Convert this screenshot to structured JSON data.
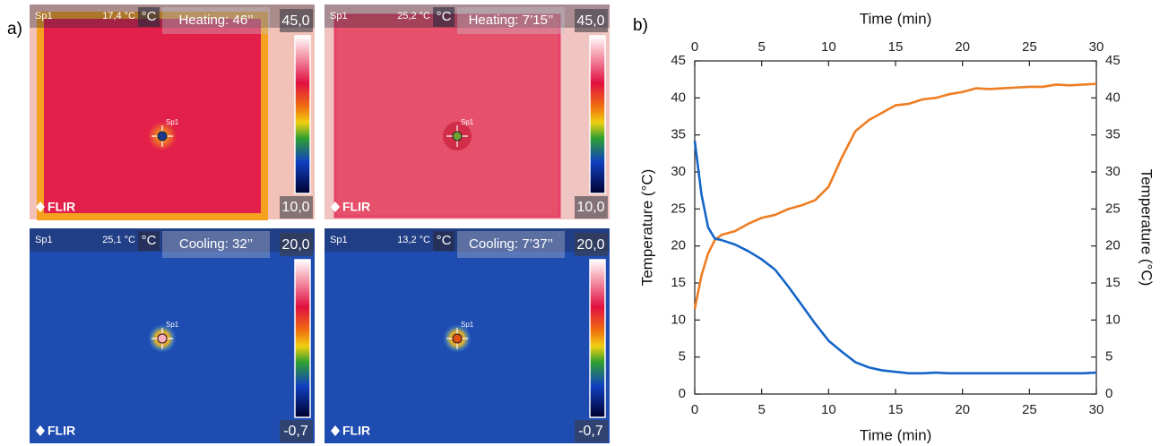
{
  "panel_a": {
    "label": "a)",
    "images": [
      {
        "spot": "Sp1",
        "temp": "17,4 °C",
        "unit": "°C",
        "mode": "Heating: 46’’",
        "scale_max": "45,0",
        "scale_min": "10,0",
        "spot_label": "Sp1",
        "brand": "FLIR"
      },
      {
        "spot": "Sp1",
        "temp": "25,2 °C",
        "unit": "°C",
        "mode": "Heating: 7’15’’",
        "scale_max": "45,0",
        "scale_min": "10,0",
        "spot_label": "Sp1",
        "brand": "FLIR"
      },
      {
        "spot": "Sp1",
        "temp": "25,1 °C",
        "unit": "°C",
        "mode": "Cooling: 32’’",
        "scale_max": "20,0",
        "scale_min": "-0,7",
        "spot_label": "Sp1",
        "brand": "FLIR"
      },
      {
        "spot": "Sp1",
        "temp": "13,2 °C",
        "unit": "°C",
        "mode": "Cooling: 7’37’’",
        "scale_max": "20,0",
        "scale_min": "-0,7",
        "spot_label": "Sp1",
        "brand": "FLIR"
      }
    ]
  },
  "chart_data": {
    "type": "line",
    "label": "b)",
    "xlabel": "Time (min)",
    "x2label": "Time (min)",
    "ylabel": "Temperature (°C)",
    "y2label": "Temperature (°C)",
    "x": [
      0,
      0.5,
      1,
      1.5,
      2,
      3,
      4,
      5,
      6,
      7,
      8,
      9,
      10,
      11,
      12,
      13,
      14,
      15,
      16,
      17,
      18,
      19,
      20,
      21,
      22,
      23,
      24,
      25,
      26,
      27,
      28,
      29,
      30
    ],
    "series": [
      {
        "color": "#ee7d22",
        "values": [
          11.5,
          16,
          19,
          20.8,
          21.5,
          22,
          23,
          23.8,
          24.2,
          25,
          25.5,
          26.2,
          28,
          32,
          35.5,
          37,
          38,
          39,
          39.2,
          39.8,
          40,
          40.5,
          40.8,
          41.3,
          41.2,
          41.3,
          41.4,
          41.5,
          41.5,
          41.8,
          41.7,
          41.8,
          41.9
        ]
      },
      {
        "color": "#1565c8",
        "values": [
          34.2,
          27,
          22.5,
          21,
          20.8,
          20.2,
          19.3,
          18.2,
          16.8,
          14.5,
          12,
          9.5,
          7.2,
          5.7,
          4.3,
          3.6,
          3.2,
          3.0,
          2.8,
          2.8,
          2.9,
          2.8,
          2.8,
          2.8,
          2.8,
          2.8,
          2.8,
          2.8,
          2.8,
          2.8,
          2.8,
          2.8,
          2.9
        ]
      }
    ],
    "xlim": [
      0,
      30
    ],
    "xticks": [
      0,
      5,
      10,
      15,
      20,
      25,
      30
    ],
    "x2lim": [
      0,
      30
    ],
    "x2ticks": [
      0,
      5,
      10,
      15,
      20,
      25,
      30
    ],
    "ylim": [
      0,
      45
    ],
    "yticks": [
      0,
      5,
      10,
      15,
      20,
      25,
      30,
      35,
      40,
      45
    ],
    "y2lim": [
      0,
      45
    ],
    "y2ticks": [
      0,
      5,
      10,
      15,
      20,
      25,
      30,
      35,
      40,
      45
    ],
    "grid": false
  }
}
